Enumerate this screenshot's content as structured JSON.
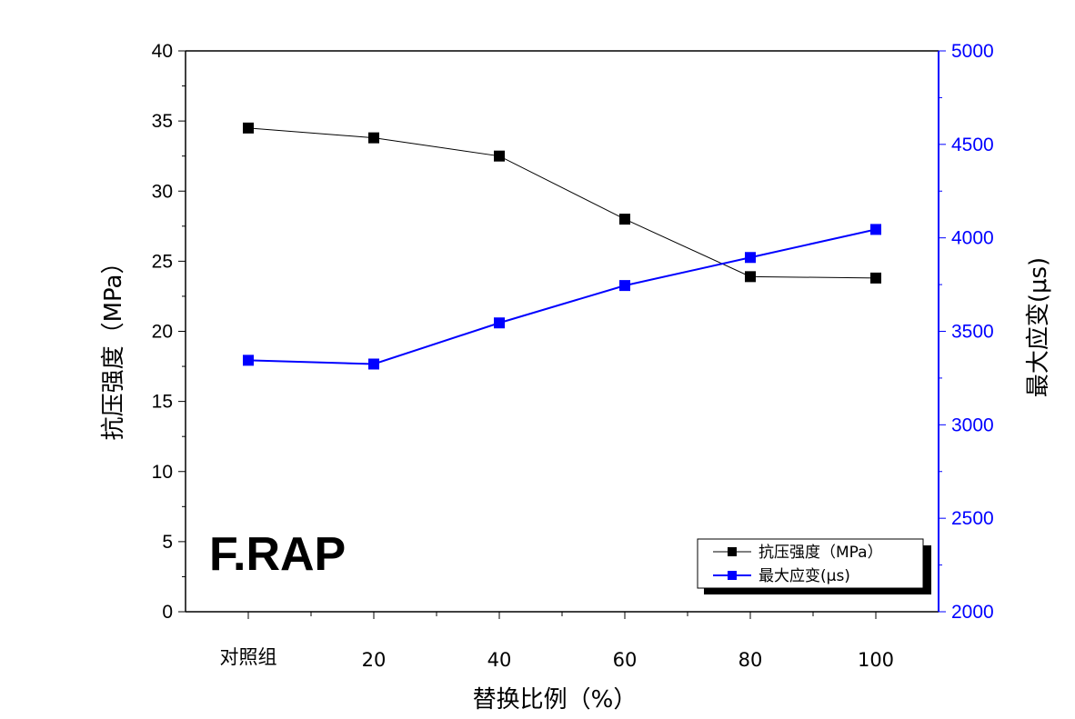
{
  "chart_data": {
    "type": "line",
    "title": "",
    "annotation": "F.RAP",
    "x": [
      "对照组",
      "20",
      "40",
      "60",
      "80",
      "100"
    ],
    "xlabel": "替换比例（%）",
    "ylabel": "抗压强度（MPa）",
    "y2label": "最大应变(μs)",
    "ylim": [
      0,
      40
    ],
    "y2lim": [
      2000,
      5000
    ],
    "yticks": [
      0,
      5,
      10,
      15,
      20,
      25,
      30,
      35,
      40
    ],
    "y2ticks": [
      2000,
      2500,
      3000,
      3500,
      4000,
      4500,
      5000
    ],
    "grid": false,
    "legend_position": "bottom-right",
    "series": [
      {
        "name": "抗压强度（MPa）",
        "axis": "left",
        "color": "#000000",
        "values": [
          34.5,
          33.8,
          32.5,
          28.0,
          23.9,
          23.8
        ]
      },
      {
        "name": "最大应变(μs)",
        "axis": "right",
        "color": "#0000ff",
        "values": [
          3345,
          3325,
          3545,
          3745,
          3895,
          4045
        ]
      }
    ]
  }
}
